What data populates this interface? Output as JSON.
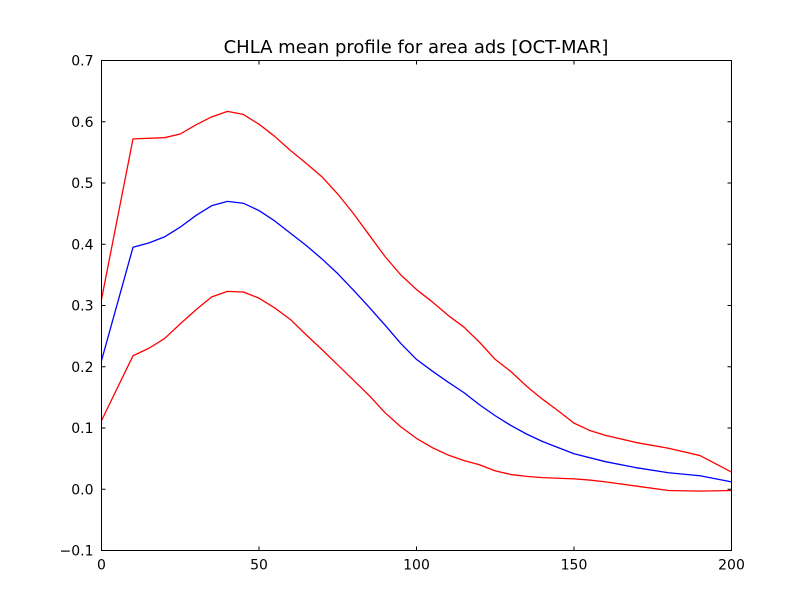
{
  "chart_data": {
    "type": "line",
    "title": "CHLA mean profile for area ads [OCT-MAR]",
    "xlabel": "",
    "ylabel": "",
    "xlim": [
      0,
      200
    ],
    "ylim": [
      -0.1,
      0.7
    ],
    "grid": false,
    "x_ticks": [
      0,
      50,
      100,
      150,
      200
    ],
    "x_tick_labels": [
      "0",
      "50",
      "100",
      "150",
      "200"
    ],
    "y_ticks": [
      -0.1,
      0.0,
      0.1,
      0.2,
      0.3,
      0.4,
      0.5,
      0.6,
      0.7
    ],
    "y_tick_labels": [
      "−0.1",
      "0.0",
      "0.1",
      "0.2",
      "0.3",
      "0.4",
      "0.5",
      "0.6",
      "0.7"
    ],
    "series": [
      {
        "color": "#ff0000",
        "points": [
          [
            0,
            0.31
          ],
          [
            10,
            0.572
          ],
          [
            20,
            0.574
          ],
          [
            25,
            0.58
          ],
          [
            30,
            0.595
          ],
          [
            35,
            0.608
          ],
          [
            40,
            0.617
          ],
          [
            45,
            0.612
          ],
          [
            50,
            0.596
          ],
          [
            55,
            0.576
          ],
          [
            60,
            0.553
          ],
          [
            65,
            0.532
          ],
          [
            70,
            0.51
          ],
          [
            75,
            0.482
          ],
          [
            80,
            0.45
          ],
          [
            85,
            0.415
          ],
          [
            90,
            0.38
          ],
          [
            95,
            0.35
          ],
          [
            100,
            0.326
          ],
          [
            105,
            0.306
          ],
          [
            110,
            0.284
          ],
          [
            115,
            0.265
          ],
          [
            120,
            0.24
          ],
          [
            125,
            0.212
          ],
          [
            130,
            0.192
          ],
          [
            135,
            0.168
          ],
          [
            140,
            0.147
          ],
          [
            145,
            0.128
          ],
          [
            150,
            0.108
          ],
          [
            155,
            0.096
          ],
          [
            160,
            0.088
          ],
          [
            170,
            0.076
          ],
          [
            180,
            0.067
          ],
          [
            190,
            0.055
          ],
          [
            200,
            0.028
          ]
        ]
      },
      {
        "color": "#0000ff",
        "points": [
          [
            0,
            0.21
          ],
          [
            10,
            0.395
          ],
          [
            15,
            0.402
          ],
          [
            20,
            0.412
          ],
          [
            25,
            0.428
          ],
          [
            30,
            0.447
          ],
          [
            35,
            0.463
          ],
          [
            40,
            0.47
          ],
          [
            45,
            0.467
          ],
          [
            50,
            0.455
          ],
          [
            55,
            0.438
          ],
          [
            60,
            0.418
          ],
          [
            65,
            0.398
          ],
          [
            70,
            0.376
          ],
          [
            75,
            0.352
          ],
          [
            80,
            0.325
          ],
          [
            85,
            0.297
          ],
          [
            90,
            0.268
          ],
          [
            95,
            0.238
          ],
          [
            100,
            0.212
          ],
          [
            105,
            0.193
          ],
          [
            110,
            0.175
          ],
          [
            115,
            0.158
          ],
          [
            120,
            0.138
          ],
          [
            125,
            0.12
          ],
          [
            130,
            0.104
          ],
          [
            135,
            0.09
          ],
          [
            140,
            0.078
          ],
          [
            145,
            0.068
          ],
          [
            150,
            0.058
          ],
          [
            160,
            0.045
          ],
          [
            170,
            0.035
          ],
          [
            180,
            0.027
          ],
          [
            190,
            0.022
          ],
          [
            200,
            0.012
          ]
        ]
      },
      {
        "color": "#ff0000",
        "points": [
          [
            0,
            0.112
          ],
          [
            10,
            0.218
          ],
          [
            15,
            0.23
          ],
          [
            20,
            0.246
          ],
          [
            25,
            0.27
          ],
          [
            30,
            0.293
          ],
          [
            35,
            0.314
          ],
          [
            40,
            0.323
          ],
          [
            45,
            0.322
          ],
          [
            50,
            0.312
          ],
          [
            55,
            0.296
          ],
          [
            60,
            0.277
          ],
          [
            65,
            0.252
          ],
          [
            70,
            0.228
          ],
          [
            75,
            0.203
          ],
          [
            80,
            0.178
          ],
          [
            85,
            0.153
          ],
          [
            90,
            0.125
          ],
          [
            95,
            0.102
          ],
          [
            100,
            0.083
          ],
          [
            105,
            0.068
          ],
          [
            110,
            0.056
          ],
          [
            115,
            0.047
          ],
          [
            120,
            0.04
          ],
          [
            125,
            0.03
          ],
          [
            130,
            0.024
          ],
          [
            135,
            0.021
          ],
          [
            140,
            0.019
          ],
          [
            145,
            0.018
          ],
          [
            150,
            0.017
          ],
          [
            155,
            0.015
          ],
          [
            160,
            0.012
          ],
          [
            170,
            0.005
          ],
          [
            180,
            -0.002
          ],
          [
            190,
            -0.003
          ],
          [
            200,
            -0.002
          ]
        ]
      }
    ]
  }
}
